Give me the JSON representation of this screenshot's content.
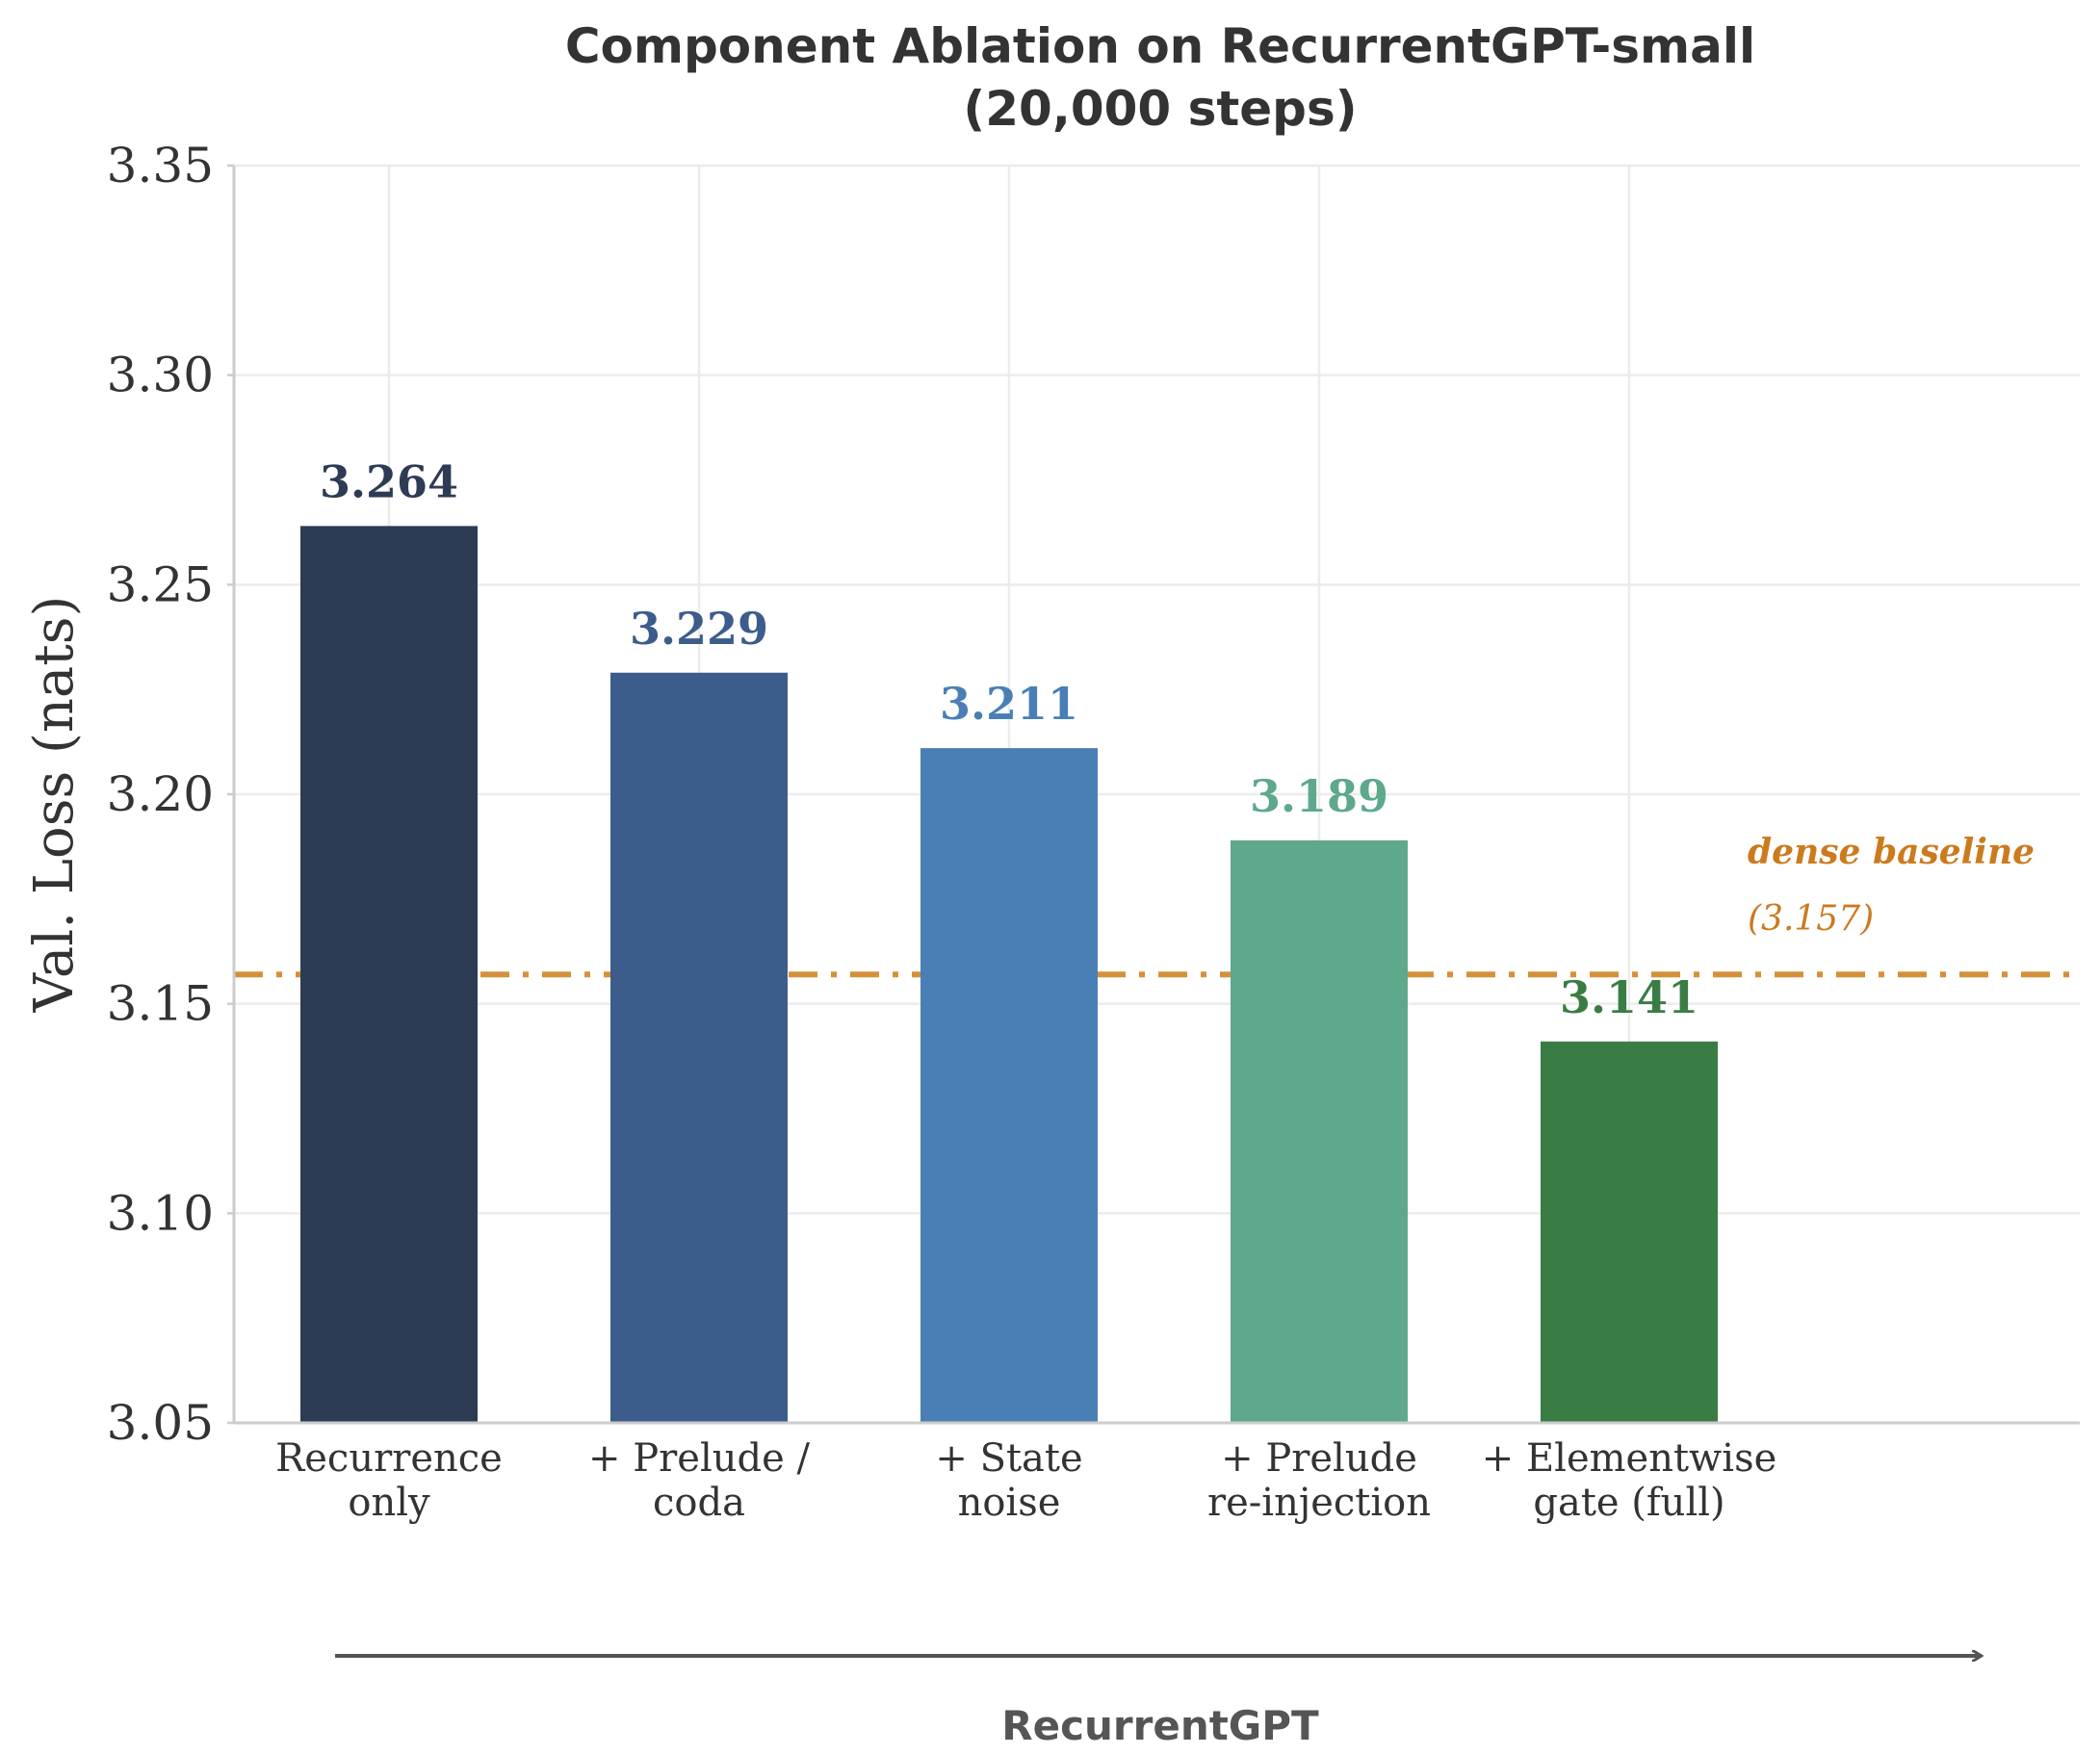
{
  "chart_data": {
    "type": "bar",
    "title": "Component Ablation on RecurrentGPT-small",
    "subtitle": "(20,000 steps)",
    "xlabel": "RecurrentGPT",
    "ylabel": "Val. Loss (nats)",
    "ylim": [
      3.05,
      3.35
    ],
    "yticks": [
      "3.05",
      "3.10",
      "3.15",
      "3.20",
      "3.25",
      "3.30",
      "3.35"
    ],
    "grid": true,
    "categories": [
      [
        "Recurrence",
        "only"
      ],
      [
        "+ Prelude /",
        "coda"
      ],
      [
        "+ State",
        "noise"
      ],
      [
        "+ Prelude",
        "re-injection"
      ],
      [
        "+ Elementwise",
        "gate (full)"
      ]
    ],
    "values": [
      3.264,
      3.229,
      3.211,
      3.189,
      3.141
    ],
    "value_labels": [
      "3.264",
      "3.229",
      "3.211",
      "3.189",
      "3.141"
    ],
    "colors": [
      "#2e3b55",
      "#3c5c8c",
      "#4a7fb5",
      "#5ea88b",
      "#3a7d44"
    ],
    "reference_line": {
      "value": 3.157,
      "label": "dense baseline",
      "value_label": "(3.157)",
      "color": "#d4913a",
      "label_color": "#cc7a1e",
      "style": "dash-dot"
    }
  }
}
